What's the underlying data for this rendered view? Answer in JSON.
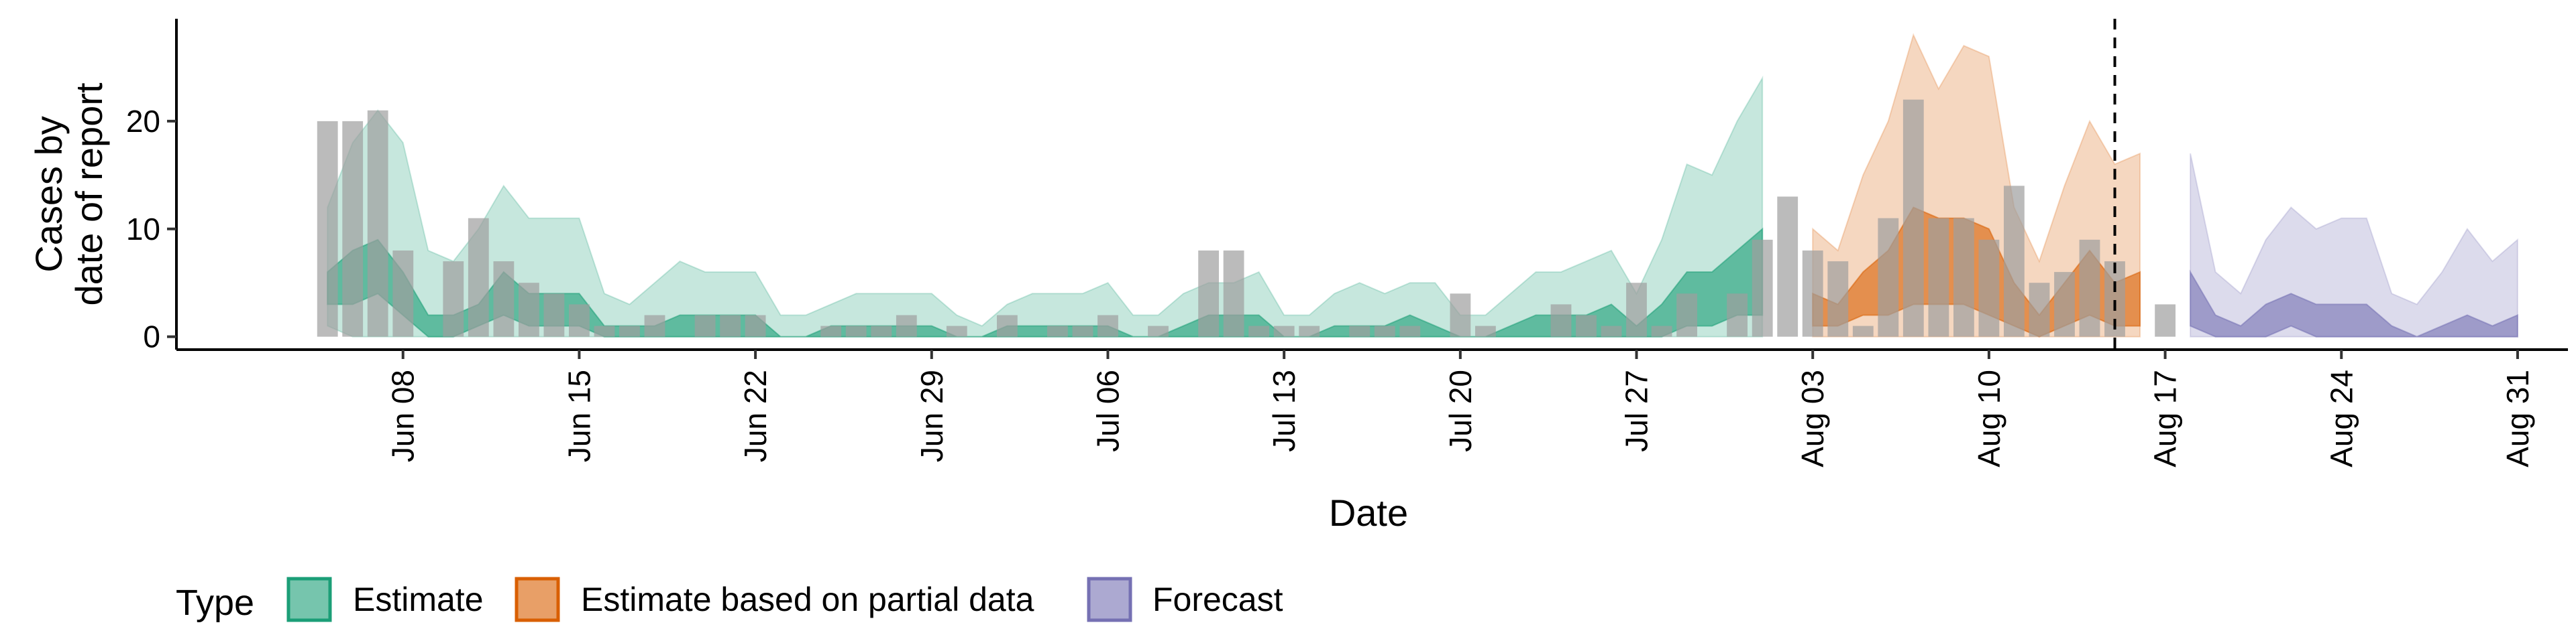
{
  "chart_data": {
    "type": "bar",
    "title": "",
    "xlabel": "Date",
    "ylabel": [
      "Cases by",
      "date of report"
    ],
    "x_tick_labels": [
      "Jun 08",
      "Jun 15",
      "Jun 22",
      "Jun 29",
      "Jul 06",
      "Jul 13",
      "Jul 20",
      "Jul 27",
      "Aug 03",
      "Aug 10",
      "Aug 17",
      "Aug 24",
      "Aug 31"
    ],
    "x_tick_dates": [
      "2020-06-08",
      "2020-06-15",
      "2020-06-22",
      "2020-06-29",
      "2020-07-06",
      "2020-07-13",
      "2020-07-20",
      "2020-07-27",
      "2020-08-03",
      "2020-08-10",
      "2020-08-17",
      "2020-08-24",
      "2020-08-31"
    ],
    "y_ticks": [
      0,
      10,
      20
    ],
    "xlim": [
      "2020-05-30",
      "2020-09-02"
    ],
    "ylim": [
      -1.2,
      29.5
    ],
    "grid": false,
    "legend_title": "Type",
    "legend_position": "bottom",
    "forecast_line_date": "2020-08-15",
    "colors": {
      "Estimate": "#1b9e77",
      "Estimate based on partial data": "#d95f02",
      "Forecast": "#7570b3",
      "bars": "#9e9e9e"
    },
    "series": [
      {
        "name": "Estimate",
        "points": [
          [
            "2020-06-05",
            1,
            12,
            3,
            6
          ],
          [
            "2020-06-06",
            0,
            18,
            3,
            8
          ],
          [
            "2020-06-07",
            0,
            21,
            4,
            9
          ],
          [
            "2020-06-08",
            0,
            18,
            2,
            6
          ],
          [
            "2020-06-09",
            0,
            8,
            0,
            2
          ],
          [
            "2020-06-10",
            0,
            7,
            0,
            2
          ],
          [
            "2020-06-11",
            0,
            10,
            1,
            3
          ],
          [
            "2020-06-12",
            0,
            14,
            2,
            6
          ],
          [
            "2020-06-13",
            0,
            11,
            1,
            4
          ],
          [
            "2020-06-14",
            0,
            11,
            1,
            4
          ],
          [
            "2020-06-15",
            0,
            11,
            1,
            4
          ],
          [
            "2020-06-16",
            0,
            4,
            0,
            1
          ],
          [
            "2020-06-17",
            0,
            3,
            0,
            1
          ],
          [
            "2020-06-18",
            0,
            5,
            0,
            1
          ],
          [
            "2020-06-19",
            0,
            7,
            0,
            2
          ],
          [
            "2020-06-20",
            0,
            6,
            0,
            2
          ],
          [
            "2020-06-21",
            0,
            6,
            0,
            2
          ],
          [
            "2020-06-22",
            0,
            6,
            0,
            2
          ],
          [
            "2020-06-23",
            0,
            2,
            0,
            0
          ],
          [
            "2020-06-24",
            0,
            2,
            0,
            0
          ],
          [
            "2020-06-25",
            0,
            3,
            0,
            1
          ],
          [
            "2020-06-26",
            0,
            4,
            0,
            1
          ],
          [
            "2020-06-27",
            0,
            4,
            0,
            1
          ],
          [
            "2020-06-28",
            0,
            4,
            0,
            1
          ],
          [
            "2020-06-29",
            0,
            4,
            0,
            1
          ],
          [
            "2020-06-30",
            0,
            2,
            0,
            0
          ],
          [
            "2020-07-01",
            0,
            1,
            0,
            0
          ],
          [
            "2020-07-02",
            0,
            3,
            0,
            1
          ],
          [
            "2020-07-03",
            0,
            4,
            0,
            1
          ],
          [
            "2020-07-04",
            0,
            4,
            0,
            1
          ],
          [
            "2020-07-05",
            0,
            4,
            0,
            1
          ],
          [
            "2020-07-06",
            0,
            5,
            0,
            1
          ],
          [
            "2020-07-07",
            0,
            2,
            0,
            0
          ],
          [
            "2020-07-08",
            0,
            2,
            0,
            0
          ],
          [
            "2020-07-09",
            0,
            4,
            0,
            1
          ],
          [
            "2020-07-10",
            0,
            5,
            0,
            2
          ],
          [
            "2020-07-11",
            0,
            5,
            0,
            2
          ],
          [
            "2020-07-12",
            0,
            6,
            0,
            2
          ],
          [
            "2020-07-13",
            0,
            2,
            0,
            0
          ],
          [
            "2020-07-14",
            0,
            2,
            0,
            0
          ],
          [
            "2020-07-15",
            0,
            4,
            0,
            1
          ],
          [
            "2020-07-16",
            0,
            5,
            0,
            1
          ],
          [
            "2020-07-17",
            0,
            4,
            0,
            1
          ],
          [
            "2020-07-18",
            0,
            5,
            0,
            2
          ],
          [
            "2020-07-19",
            0,
            5,
            0,
            1
          ],
          [
            "2020-07-20",
            0,
            2,
            0,
            0
          ],
          [
            "2020-07-21",
            0,
            2,
            0,
            0
          ],
          [
            "2020-07-22",
            0,
            4,
            0,
            1
          ],
          [
            "2020-07-23",
            0,
            6,
            0,
            2
          ],
          [
            "2020-07-24",
            0,
            6,
            0,
            2
          ],
          [
            "2020-07-25",
            0,
            7,
            0,
            2
          ],
          [
            "2020-07-26",
            0,
            8,
            0,
            3
          ],
          [
            "2020-07-27",
            0,
            4,
            0,
            1
          ],
          [
            "2020-07-28",
            0,
            9,
            0,
            3
          ],
          [
            "2020-07-29",
            0,
            16,
            1,
            6
          ],
          [
            "2020-07-30",
            0,
            15,
            1,
            6
          ],
          [
            "2020-07-31",
            0,
            20,
            2,
            8
          ],
          [
            "2020-08-01",
            0,
            24,
            2,
            10
          ]
        ]
      },
      {
        "name": "Estimate based on partial data",
        "points": [
          [
            "2020-08-03",
            0,
            10,
            1,
            4
          ],
          [
            "2020-08-04",
            0,
            8,
            1,
            3
          ],
          [
            "2020-08-05",
            0,
            15,
            2,
            6
          ],
          [
            "2020-08-06",
            0,
            20,
            2,
            8
          ],
          [
            "2020-08-07",
            0,
            28,
            3,
            12
          ],
          [
            "2020-08-08",
            0,
            23,
            3,
            11
          ],
          [
            "2020-08-09",
            0,
            27,
            3,
            11
          ],
          [
            "2020-08-10",
            0,
            26,
            2,
            10
          ],
          [
            "2020-08-11",
            0,
            12,
            1,
            5
          ],
          [
            "2020-08-12",
            0,
            7,
            0,
            2
          ],
          [
            "2020-08-13",
            0,
            14,
            1,
            5
          ],
          [
            "2020-08-14",
            0,
            20,
            2,
            8
          ],
          [
            "2020-08-15",
            0,
            16,
            1,
            5
          ],
          [
            "2020-08-16",
            0,
            17,
            1,
            6
          ]
        ]
      },
      {
        "name": "Forecast",
        "points": [
          [
            "2020-08-18",
            0,
            17,
            1,
            6
          ],
          [
            "2020-08-19",
            0,
            6,
            0,
            2
          ],
          [
            "2020-08-20",
            0,
            4,
            0,
            1
          ],
          [
            "2020-08-21",
            0,
            9,
            0,
            3
          ],
          [
            "2020-08-22",
            0,
            12,
            1,
            4
          ],
          [
            "2020-08-23",
            0,
            10,
            0,
            3
          ],
          [
            "2020-08-24",
            0,
            11,
            0,
            3
          ],
          [
            "2020-08-25",
            0,
            11,
            0,
            3
          ],
          [
            "2020-08-26",
            0,
            4,
            0,
            1
          ],
          [
            "2020-08-27",
            0,
            3,
            0,
            0
          ],
          [
            "2020-08-28",
            0,
            6,
            0,
            1
          ],
          [
            "2020-08-29",
            0,
            10,
            0,
            2
          ],
          [
            "2020-08-30",
            0,
            7,
            0,
            1
          ],
          [
            "2020-08-31",
            0,
            9,
            0,
            2
          ]
        ]
      }
    ],
    "series_value_order": [
      "date",
      "lower_90",
      "upper_90",
      "lower_50",
      "upper_50"
    ],
    "bars": [
      [
        "2020-06-05",
        20
      ],
      [
        "2020-06-06",
        20
      ],
      [
        "2020-06-07",
        21
      ],
      [
        "2020-06-08",
        8
      ],
      [
        "2020-06-10",
        7
      ],
      [
        "2020-06-11",
        11
      ],
      [
        "2020-06-12",
        7
      ],
      [
        "2020-06-13",
        5
      ],
      [
        "2020-06-14",
        4
      ],
      [
        "2020-06-15",
        3
      ],
      [
        "2020-06-16",
        1
      ],
      [
        "2020-06-17",
        1
      ],
      [
        "2020-06-18",
        2
      ],
      [
        "2020-06-20",
        2
      ],
      [
        "2020-06-21",
        2
      ],
      [
        "2020-06-22",
        2
      ],
      [
        "2020-06-25",
        1
      ],
      [
        "2020-06-26",
        1
      ],
      [
        "2020-06-27",
        1
      ],
      [
        "2020-06-28",
        2
      ],
      [
        "2020-06-30",
        1
      ],
      [
        "2020-07-02",
        2
      ],
      [
        "2020-07-04",
        1
      ],
      [
        "2020-07-05",
        1
      ],
      [
        "2020-07-06",
        2
      ],
      [
        "2020-07-08",
        1
      ],
      [
        "2020-07-10",
        8
      ],
      [
        "2020-07-11",
        8
      ],
      [
        "2020-07-12",
        1
      ],
      [
        "2020-07-13",
        1
      ],
      [
        "2020-07-14",
        1
      ],
      [
        "2020-07-16",
        1
      ],
      [
        "2020-07-17",
        1
      ],
      [
        "2020-07-18",
        1
      ],
      [
        "2020-07-20",
        4
      ],
      [
        "2020-07-21",
        1
      ],
      [
        "2020-07-24",
        3
      ],
      [
        "2020-07-25",
        2
      ],
      [
        "2020-07-26",
        1
      ],
      [
        "2020-07-27",
        5
      ],
      [
        "2020-07-28",
        1
      ],
      [
        "2020-07-29",
        4
      ],
      [
        "2020-07-31",
        4
      ],
      [
        "2020-08-01",
        9
      ],
      [
        "2020-08-02",
        13
      ],
      [
        "2020-08-03",
        8
      ],
      [
        "2020-08-04",
        7
      ],
      [
        "2020-08-05",
        1
      ],
      [
        "2020-08-06",
        11
      ],
      [
        "2020-08-07",
        22
      ],
      [
        "2020-08-08",
        11
      ],
      [
        "2020-08-09",
        11
      ],
      [
        "2020-08-10",
        9
      ],
      [
        "2020-08-11",
        14
      ],
      [
        "2020-08-12",
        5
      ],
      [
        "2020-08-13",
        6
      ],
      [
        "2020-08-14",
        9
      ],
      [
        "2020-08-15",
        7
      ],
      [
        "2020-08-17",
        3
      ]
    ]
  }
}
